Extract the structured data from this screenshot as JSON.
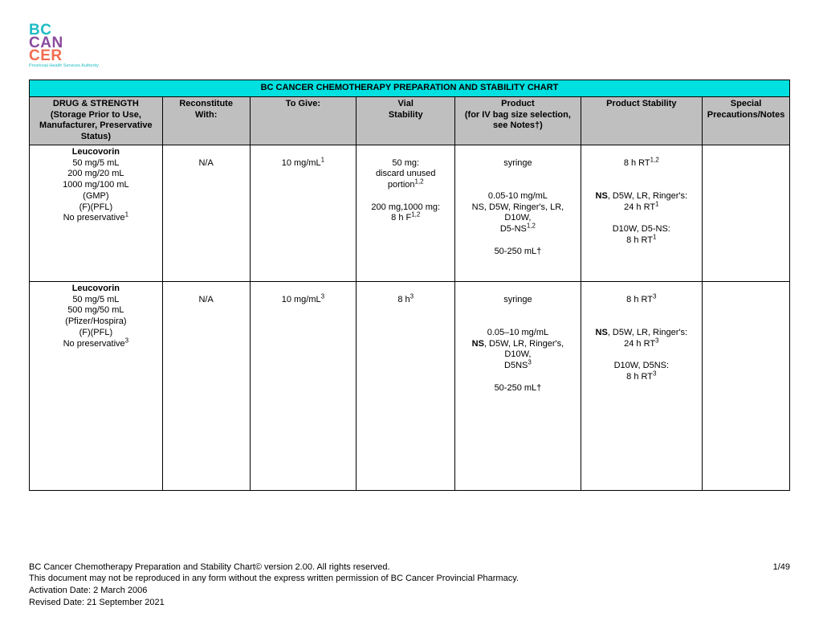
{
  "logo": {
    "line1": "BC",
    "line2": "CAN",
    "line3": "CER",
    "tagline": "Provincial Health Services Authority",
    "color1": "#1ebcc5",
    "color2": "#8a4a9e",
    "color3": "#f26c4f"
  },
  "table": {
    "title": "BC CANCER CHEMOTHERAPY PREPARATION AND STABILITY CHART",
    "title_bg": "#00e0e0",
    "header_bg": "#bfbfbf",
    "border_color": "#000000",
    "columns": [
      "DRUG & STRENGTH",
      "Reconstitute",
      "To Give:",
      "Vial",
      "Product",
      "Product Stability",
      "Special"
    ],
    "columns_sub": [
      "(Storage Prior to Use, Manufacturer, Preservative Status)",
      "With:",
      "",
      "Stability",
      "(for IV bag size selection, see Notes†)",
      "",
      "Precautions/Notes"
    ],
    "rows": [
      {
        "drug_name": "Leucovorin",
        "drug_lines": [
          "50 mg/5 mL",
          "200 mg/20 mL",
          "1000 mg/100 mL",
          "(GMP)",
          "(F)(PFL)"
        ],
        "drug_last": "No preservative",
        "drug_last_sup": "1",
        "reconstitute": "N/A",
        "togive": "10 mg/mL",
        "togive_sup": "1",
        "vial_lines_a": [
          "50 mg:",
          "discard unused"
        ],
        "vial_portion": "portion",
        "vial_portion_sup": "1,2",
        "vial_lines_b": [
          "",
          "200 mg,1000 mg:"
        ],
        "vial_last": "8 h F",
        "vial_last_sup": "1,2",
        "product_a": "syringe",
        "product_gap": " ",
        "product_conc": "0.05-10 mg/mL",
        "product_sol": "NS, D5W, Ringer's, LR, D10W,",
        "product_sol2": "D5-NS",
        "product_sol2_sup": "1,2",
        "product_vol": "50-250 mL†",
        "stab_a": "8 h RT",
        "stab_a_sup": "1,2",
        "stab_b_bold": "NS",
        "stab_b_rest": ", D5W, LR, Ringer's:",
        "stab_b2": "24 h RT",
        "stab_b2_sup": "1",
        "stab_c": "D10W, D5-NS:",
        "stab_c2": "8 h RT",
        "stab_c2_sup": "1"
      },
      {
        "drug_name": "Leucovorin",
        "drug_lines": [
          "50 mg/5 mL",
          "500 mg/50 mL",
          "(Pfizer/Hospira)",
          "(F)(PFL)"
        ],
        "drug_last": "No preservative",
        "drug_last_sup": "3",
        "reconstitute": "N/A",
        "togive": "10 mg/mL",
        "togive_sup": "3",
        "vial_a": "8 h",
        "vial_a_sup": "3",
        "product_a": "syringe",
        "product_gap": " ",
        "product_conc": "0.05–10 mg/mL",
        "product_sol_bold": "NS",
        "product_sol_rest": ", D5W, LR, Ringer's, D10W,",
        "product_sol2": "D5NS",
        "product_sol2_sup": "3",
        "product_vol": "50-250 mL†",
        "stab_a": "8 h RT",
        "stab_a_sup": "3",
        "stab_b_bold": "NS",
        "stab_b_rest": ", D5W, LR, Ringer's:",
        "stab_b2": "24 h RT",
        "stab_b2_sup": "3",
        "stab_c": "D10W, D5NS:",
        "stab_c2": "8 h RT",
        "stab_c2_sup": "3"
      }
    ]
  },
  "footer": {
    "line1": "BC Cancer Chemotherapy Preparation and Stability Chart© version 2.00. All rights reserved.",
    "page": "1/49",
    "line2": "This document may not be reproduced in any form without the express written permission of BC Cancer Provincial Pharmacy.",
    "line3": "Activation Date: 2 March 2006",
    "line4": "Revised Date: 21 September 2021"
  }
}
